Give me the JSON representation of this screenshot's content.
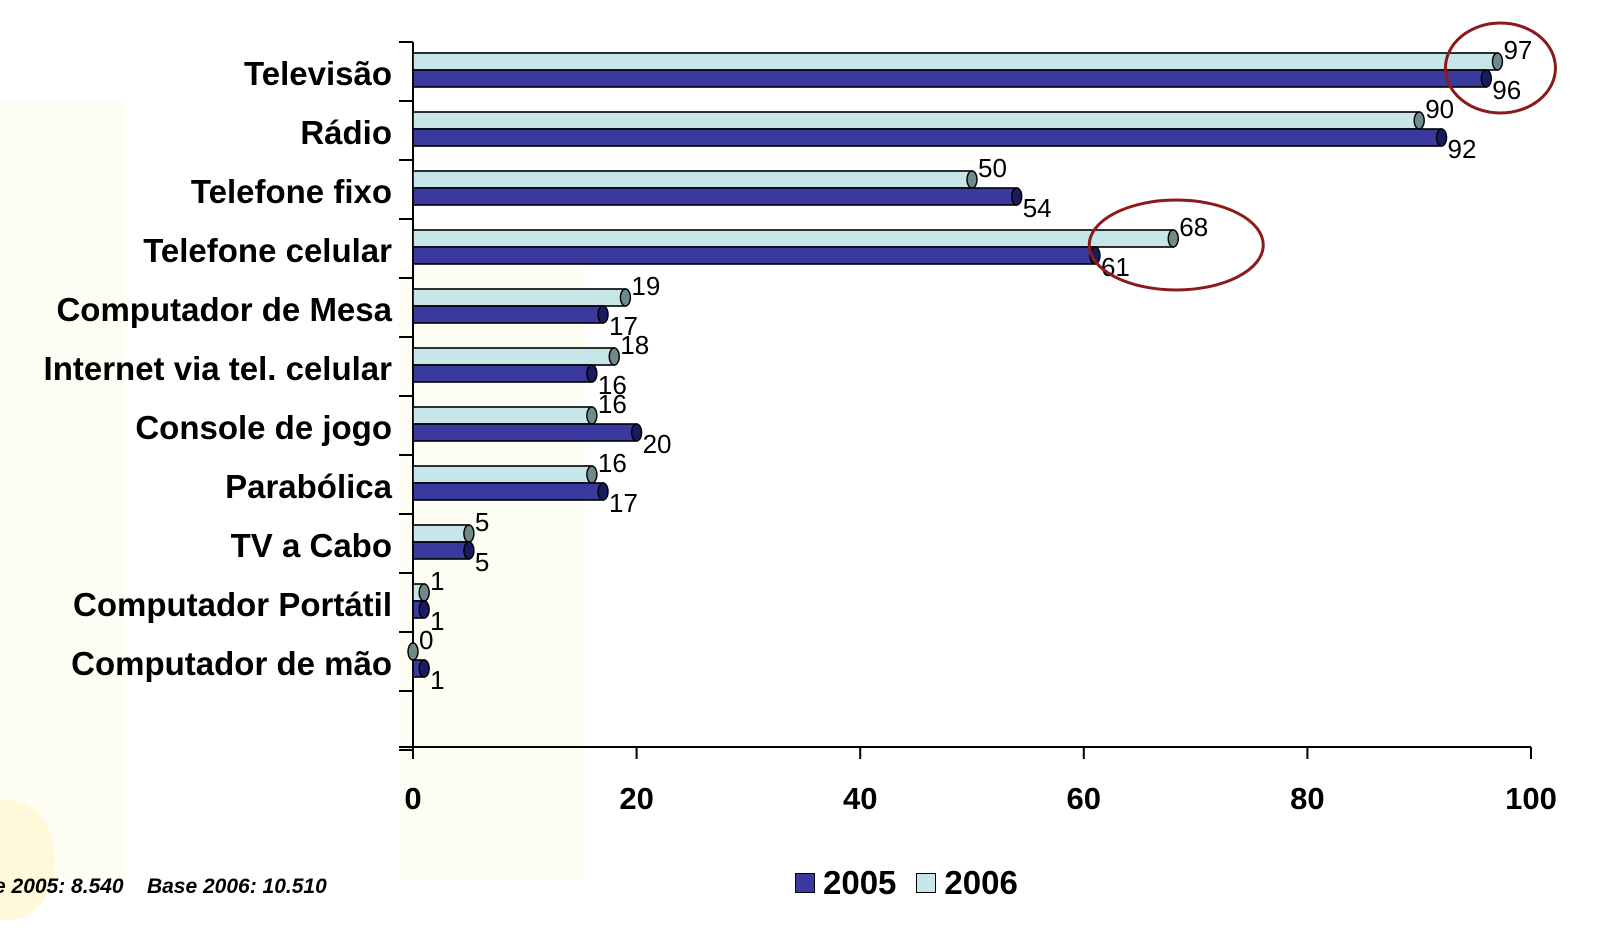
{
  "footer": {
    "base_2005": "e 2005: 8.540",
    "base_2006": "Base 2006: 10.510"
  },
  "legend": [
    {
      "label": "2005",
      "color": "#3a3a9e"
    },
    {
      "label": "2006",
      "color": "#c6e6e9"
    }
  ],
  "chart_data": {
    "type": "bar",
    "orientation": "horizontal",
    "categories": [
      "Televisão",
      "Rádio",
      "Telefone fixo",
      "Telefone celular",
      "Computador de Mesa",
      "Internet via tel. celular",
      "Console de jogo",
      "Parabólica",
      "TV a Cabo",
      "Computador Portátil",
      "Computador de mão"
    ],
    "series": [
      {
        "name": "2006",
        "color": "#c6e6e9",
        "values": [
          97,
          90,
          50,
          68,
          19,
          18,
          16,
          16,
          5,
          1,
          0
        ]
      },
      {
        "name": "2005",
        "color": "#3a3a9e",
        "values": [
          96,
          92,
          54,
          61,
          17,
          16,
          20,
          17,
          5,
          1,
          1
        ]
      }
    ],
    "xlim": [
      0,
      100
    ],
    "xticks": [
      "0",
      "20",
      "40",
      "60",
      "80",
      "100"
    ],
    "highlighted_categories": [
      "Televisão",
      "Telefone celular"
    ],
    "highlight_color": "#8b1a1a",
    "grid": false,
    "legend_position": "bottom"
  }
}
